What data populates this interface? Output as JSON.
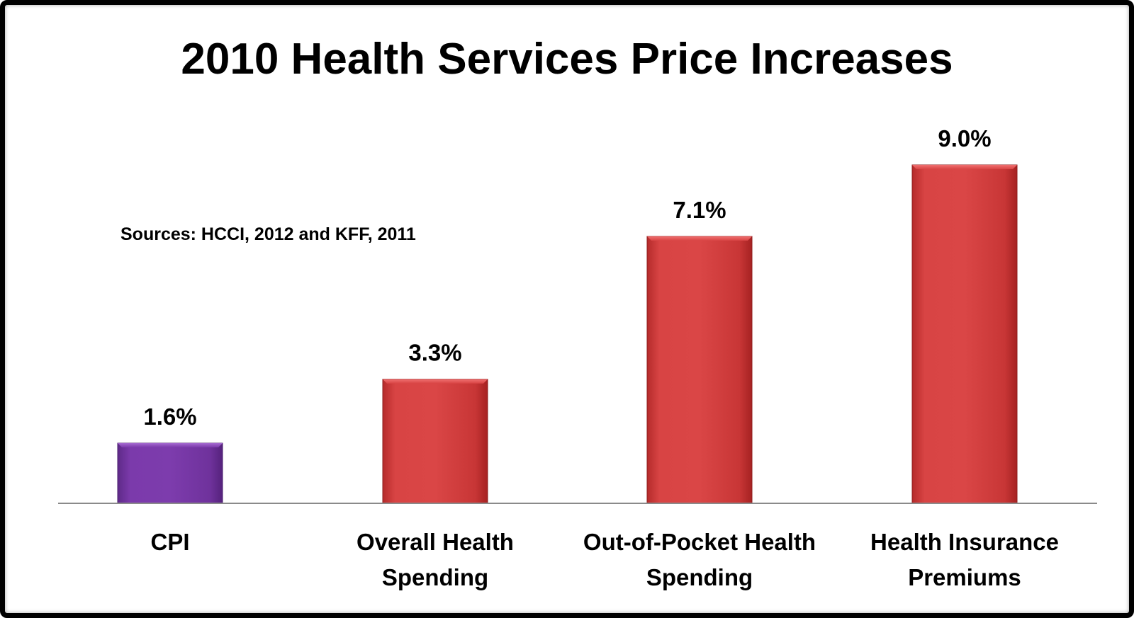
{
  "chart_data": {
    "type": "bar",
    "title": "2010 Health Services Price Increases",
    "note": "Sources: HCCI, 2012 and KFF, 2011",
    "categories": [
      [
        "CPI"
      ],
      [
        "Overall Health",
        "Spending"
      ],
      [
        "Out-of-Pocket Health",
        "Spending"
      ],
      [
        "Health Insurance",
        "Premiums"
      ]
    ],
    "values": [
      1.6,
      3.3,
      7.1,
      9.0
    ],
    "value_labels": [
      "1.6%",
      "3.3%",
      "7.1%",
      "9.0%"
    ],
    "ylim": [
      0,
      9.0
    ],
    "grid": false,
    "legend": "none",
    "colors": {
      "cpi": "#7b3aa8",
      "health": "#d23c3c"
    }
  }
}
